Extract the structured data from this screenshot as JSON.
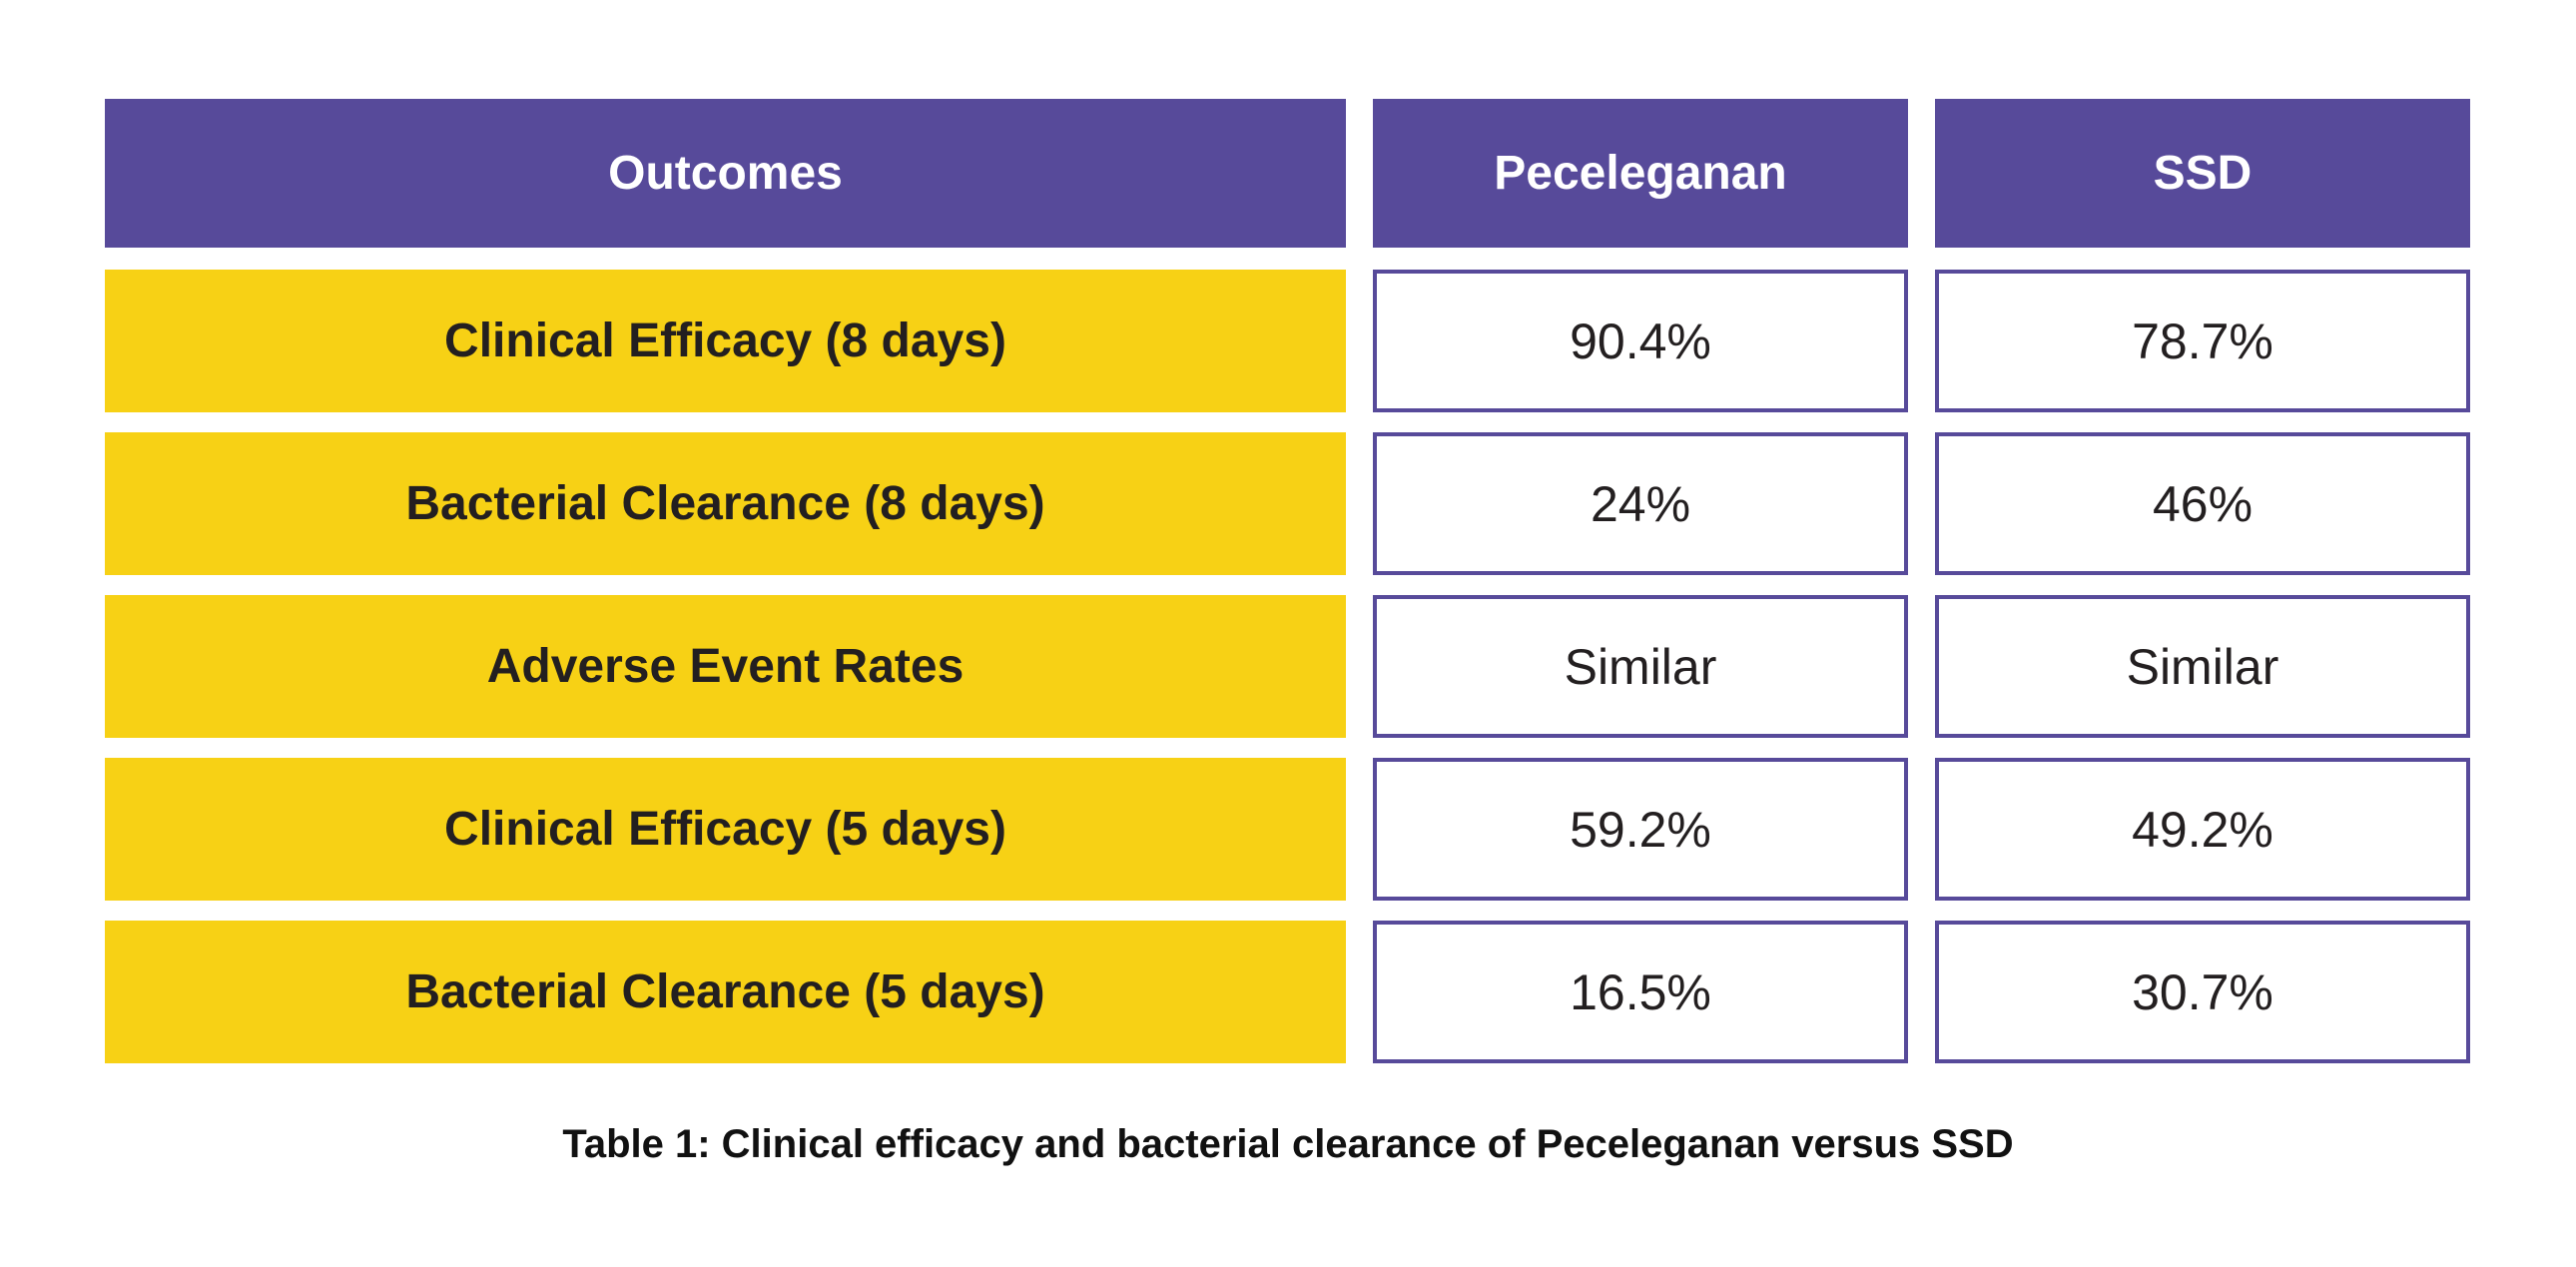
{
  "table": {
    "headers": [
      "Outcomes",
      "Peceleganan",
      "SSD"
    ],
    "rows": [
      {
        "outcome": "Clinical Efficacy (8 days)",
        "peceleganan": "90.4%",
        "ssd": "78.7%"
      },
      {
        "outcome": "Bacterial Clearance (8 days)",
        "peceleganan": "24%",
        "ssd": "46%"
      },
      {
        "outcome": "Adverse Event Rates",
        "peceleganan": "Similar",
        "ssd": "Similar"
      },
      {
        "outcome": "Clinical Efficacy (5 days)",
        "peceleganan": "59.2%",
        "ssd": "49.2%"
      },
      {
        "outcome": "Bacterial Clearance (5 days)",
        "peceleganan": "16.5%",
        "ssd": "30.7%"
      }
    ],
    "caption": "Table 1: Clinical efficacy and bacterial clearance of Peceleganan versus SSD"
  },
  "colors": {
    "header": "#574A9A",
    "outcome_fill": "#F7D115",
    "border": "#574A9A"
  }
}
